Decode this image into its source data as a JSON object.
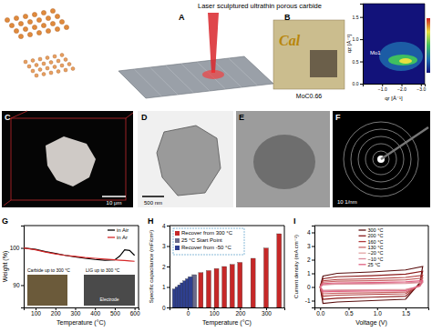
{
  "chart_data": [
    {
      "type": "line",
      "xlabel": "Temperature (°C)",
      "ylabel": "Weight (%)",
      "x": [
        40,
        100,
        150,
        200,
        250,
        300,
        350,
        400,
        450,
        500,
        525,
        550,
        575,
        600
      ],
      "series": [
        {
          "name": "in Air",
          "color": "#000000",
          "values": [
            100,
            99.6,
            99.0,
            98.5,
            98.0,
            97.6,
            97.2,
            96.9,
            96.7,
            96.8,
            97.8,
            99.5,
            99.3,
            98.0
          ]
        },
        {
          "name": "in Ar",
          "color": "#d62728",
          "values": [
            100,
            99.5,
            98.9,
            98.4,
            98.0,
            97.7,
            97.4,
            97.2,
            97.0,
            96.8,
            96.7,
            96.6,
            96.5,
            96.4
          ]
        }
      ],
      "xlim": [
        40,
        620
      ],
      "xticks": [
        100,
        200,
        300,
        400,
        500,
        600
      ],
      "ylim": [
        84,
        106
      ],
      "yticks": [
        90,
        100
      ],
      "legend": "upper right",
      "annotations": [
        "Carbide up to 300 °C",
        "LIG up to 300 °C",
        "Electrode"
      ]
    },
    {
      "type": "bar",
      "xlabel": "Temperature (°C)",
      "ylabel": "Specific capacitance (mF/cm²)",
      "series": [
        {
          "name": "Recover from 300 °C",
          "color": "#c62828",
          "x": [
            50,
            80,
            110,
            140,
            170,
            200,
            250,
            300,
            350
          ],
          "values": [
            1.7,
            1.8,
            1.9,
            2.0,
            2.1,
            2.2,
            2.4,
            2.9,
            3.6
          ]
        },
        {
          "name": "25 °C Start Point",
          "color": "#6a6a8a",
          "x": [
            25
          ],
          "values": [
            1.6
          ]
        },
        {
          "name": "Recover from -50 °C",
          "color": "#2e3f8f",
          "x": [
            -50,
            -40,
            -30,
            -20,
            -10,
            0,
            10
          ],
          "values": [
            0.9,
            1.0,
            1.1,
            1.2,
            1.3,
            1.4,
            1.5
          ]
        }
      ],
      "xlim": [
        -70,
        370
      ],
      "xticks": [
        0,
        100,
        200,
        300
      ],
      "ylim": [
        0,
        4
      ],
      "yticks": [
        0,
        1,
        2,
        3,
        4
      ],
      "legend": "upper left"
    },
    {
      "type": "line",
      "xlabel": "Voltage (V)",
      "ylabel": "Current density (mA cm⁻²)",
      "x": [
        0,
        0.05,
        0.3,
        0.9,
        1.5,
        1.8,
        1.75,
        1.5,
        0.9,
        0.3,
        0.05,
        0
      ],
      "series": [
        {
          "name": "300 °C",
          "color": "#5a0f0f",
          "values": [
            0,
            0.8,
            1.0,
            1.1,
            1.25,
            1.5,
            0.3,
            -0.9,
            -1.0,
            -1.1,
            -1.2,
            0
          ]
        },
        {
          "name": "200 °C",
          "color": "#8b1a1a",
          "values": [
            0,
            0.6,
            0.75,
            0.82,
            0.94,
            1.15,
            0.2,
            -0.68,
            -0.75,
            -0.82,
            -0.9,
            0
          ]
        },
        {
          "name": "160 °C",
          "color": "#b03a3a",
          "values": [
            0,
            0.45,
            0.55,
            0.6,
            0.7,
            0.85,
            0.15,
            -0.5,
            -0.55,
            -0.6,
            -0.68,
            0
          ]
        },
        {
          "name": "130 °C",
          "color": "#c86464",
          "values": [
            0,
            0.35,
            0.42,
            0.46,
            0.53,
            0.65,
            0.1,
            -0.38,
            -0.42,
            -0.46,
            -0.5,
            0
          ]
        },
        {
          "name": "−20 °C",
          "color": "#e3a3a3",
          "values": [
            0,
            0.15,
            0.2,
            0.22,
            0.25,
            0.32,
            0.05,
            -0.18,
            -0.2,
            -0.22,
            -0.24,
            0
          ]
        },
        {
          "name": "−10 °C",
          "color": "#d98c9c",
          "values": [
            0,
            0.18,
            0.24,
            0.26,
            0.3,
            0.38,
            0.06,
            -0.22,
            -0.24,
            -0.26,
            -0.28,
            0
          ]
        },
        {
          "name": "25 °C",
          "color": "#e06080",
          "values": [
            0,
            0.25,
            0.3,
            0.33,
            0.38,
            0.47,
            0.08,
            -0.28,
            -0.3,
            -0.33,
            -0.36,
            0
          ]
        }
      ],
      "xlim": [
        -0.1,
        1.9
      ],
      "xticks": [
        {
          "value": 0,
          "label": "0.0"
        },
        0.5,
        {
          "value": 1,
          "label": "1.0"
        },
        1.5
      ],
      "ylim": [
        -1.5,
        4.5
      ],
      "yticks": [
        -1,
        0,
        1,
        2,
        3,
        4
      ],
      "legend": "upper center"
    }
  ],
  "figure": {
    "title": "Laser sculptured ultrathin porous carbide",
    "panel_labels": [
      "A",
      "B",
      "C",
      "D",
      "E",
      "F",
      "G",
      "H",
      "I"
    ],
    "photo": {
      "text": "Cal",
      "caption": "MoC0.66"
    },
    "giwaxs": {
      "xlabel": "qr [Å⁻¹]",
      "ylabel": "qz [Å⁻¹]",
      "xlim": [
        0,
        -3.2
      ],
      "xticks": [
        {
          "value": -1,
          "label": "−1.0"
        },
        {
          "value": -2,
          "label": "−2.0"
        },
        {
          "value": -3,
          "label": "−3.0"
        }
      ],
      "ylim": [
        0,
        1.8
      ],
      "yticks": [
        {
          "value": 0,
          "label": "0.0"
        },
        0.5,
        {
          "value": 1,
          "label": "1.0"
        },
        1.5
      ],
      "annotation": "Mo1"
    },
    "scale_bars": {
      "C": "10 μm",
      "D": "500 nm",
      "F": "10 1/nm"
    }
  }
}
